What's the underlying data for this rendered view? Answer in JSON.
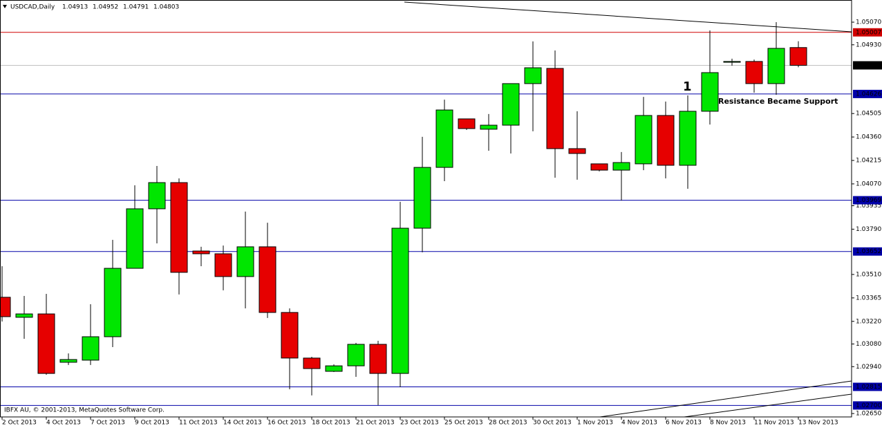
{
  "chart_data": {
    "type": "candlestick",
    "title": "USDCAD,Daily",
    "copyright": "IBFX AU, © 2001-2013, MetaQuotes Software Corp.",
    "annotations": [
      "1",
      "Resistance Became Support"
    ],
    "categories": [
      "2 Oct 2013",
      null,
      "4 Oct 2013",
      null,
      "7 Oct 2013",
      null,
      "9 Oct 2013",
      null,
      "11 Oct 2013",
      null,
      "14 Oct 2013",
      null,
      "16 Oct 2013",
      null,
      "18 Oct 2013",
      null,
      "21 Oct 2013",
      null,
      "23 Oct 2013",
      null,
      "25 Oct 2013",
      null,
      "28 Oct 2013",
      null,
      "30 Oct 2013",
      null,
      "1 Nov 2013",
      null,
      "4 Nov 2013",
      null,
      "6 Nov 2013",
      null,
      "8 Nov 2013",
      null,
      "11 Nov 2013",
      null,
      "13 Nov 2013"
    ],
    "open": [
      1.03369,
      1.03245,
      1.03266,
      1.02967,
      1.0298,
      1.03125,
      1.03548,
      1.03916,
      1.04078,
      1.03655,
      1.03638,
      1.03497,
      1.03681,
      1.03275,
      1.02993,
      1.02911,
      1.02945,
      1.03078,
      1.02898,
      1.03796,
      1.04172,
      1.04472,
      1.04408,
      1.04433,
      1.0469,
      1.04784,
      1.04288,
      1.04194,
      1.04155,
      1.04194,
      1.04493,
      1.04185,
      1.04519,
      1.04822,
      1.04827,
      1.0469,
      1.04913
    ],
    "high": [
      1.03561,
      1.03377,
      1.0339,
      1.03022,
      1.03326,
      1.03724,
      1.04061,
      1.04181,
      1.04104,
      1.03681,
      1.03689,
      1.03899,
      1.0383,
      1.033,
      1.03001,
      1.02954,
      1.03087,
      1.031,
      1.03959,
      1.04361,
      1.04591,
      1.04472,
      1.04502,
      1.0469,
      1.04951,
      1.04895,
      1.04519,
      1.04194,
      1.04267,
      1.04608,
      1.04579,
      1.04617,
      1.05019,
      1.04844,
      1.04839,
      1.0507,
      1.04952
    ],
    "low": [
      1.03219,
      1.03112,
      1.0289,
      1.0295,
      1.0295,
      1.03061,
      1.03548,
      1.03702,
      1.03386,
      1.03561,
      1.03412,
      1.033,
      1.03241,
      1.028,
      1.02762,
      1.02907,
      1.02877,
      1.02702,
      1.02813,
      1.03647,
      1.04087,
      1.04403,
      1.04275,
      1.04258,
      1.04395,
      1.04108,
      1.04096,
      1.04147,
      1.03967,
      1.04155,
      1.04104,
      1.0404,
      1.04437,
      1.04801,
      1.04634,
      1.04621,
      1.04791
    ],
    "close": [
      1.03249,
      1.03266,
      1.02898,
      1.02984,
      1.03125,
      1.03548,
      1.03916,
      1.04078,
      1.03523,
      1.03638,
      1.03497,
      1.03681,
      1.03275,
      1.02993,
      1.02928,
      1.02945,
      1.03078,
      1.02898,
      1.03796,
      1.04172,
      1.04527,
      1.04412,
      1.04433,
      1.0469,
      1.04788,
      1.04288,
      1.04258,
      1.04155,
      1.04202,
      1.04493,
      1.04185,
      1.04519,
      1.04758,
      1.04827,
      1.0469,
      1.04908,
      1.04803
    ],
    "up_color": "#00e600",
    "down_color": "#e60000",
    "ylim": [
      1.02629,
      1.05207
    ],
    "yticks": [
      {
        "value": 1.0507,
        "label": "1.05070"
      },
      {
        "value": 1.0493,
        "label": "1.04930"
      },
      1.04505,
      {
        "value": 1.0436,
        "label": "1.04360"
      },
      1.04215,
      {
        "value": 1.0407,
        "label": "1.04070"
      },
      1.03935,
      {
        "value": 1.0379,
        "label": "1.03790"
      },
      {
        "value": 1.0351,
        "label": "1.03510"
      },
      1.03365,
      {
        "value": 1.0322,
        "label": "1.03220"
      },
      {
        "value": 1.0308,
        "label": "1.03080"
      },
      {
        "value": 1.0294,
        "label": "1.02940"
      },
      {
        "value": 1.0265,
        "label": "1.02650"
      }
    ],
    "levels": [
      {
        "value": 1.05007,
        "color": "#d00000"
      },
      {
        "value": 1.04626,
        "color": "#0000a8"
      },
      {
        "value": 1.03969,
        "color": "#0000a8"
      },
      {
        "value": 1.03652,
        "color": "#0000a8"
      },
      {
        "value": 1.02815,
        "color": "#0000a8"
      },
      {
        "value": 1.027,
        "label": "1.02700",
        "color": "#0000a8"
      }
    ]
  }
}
